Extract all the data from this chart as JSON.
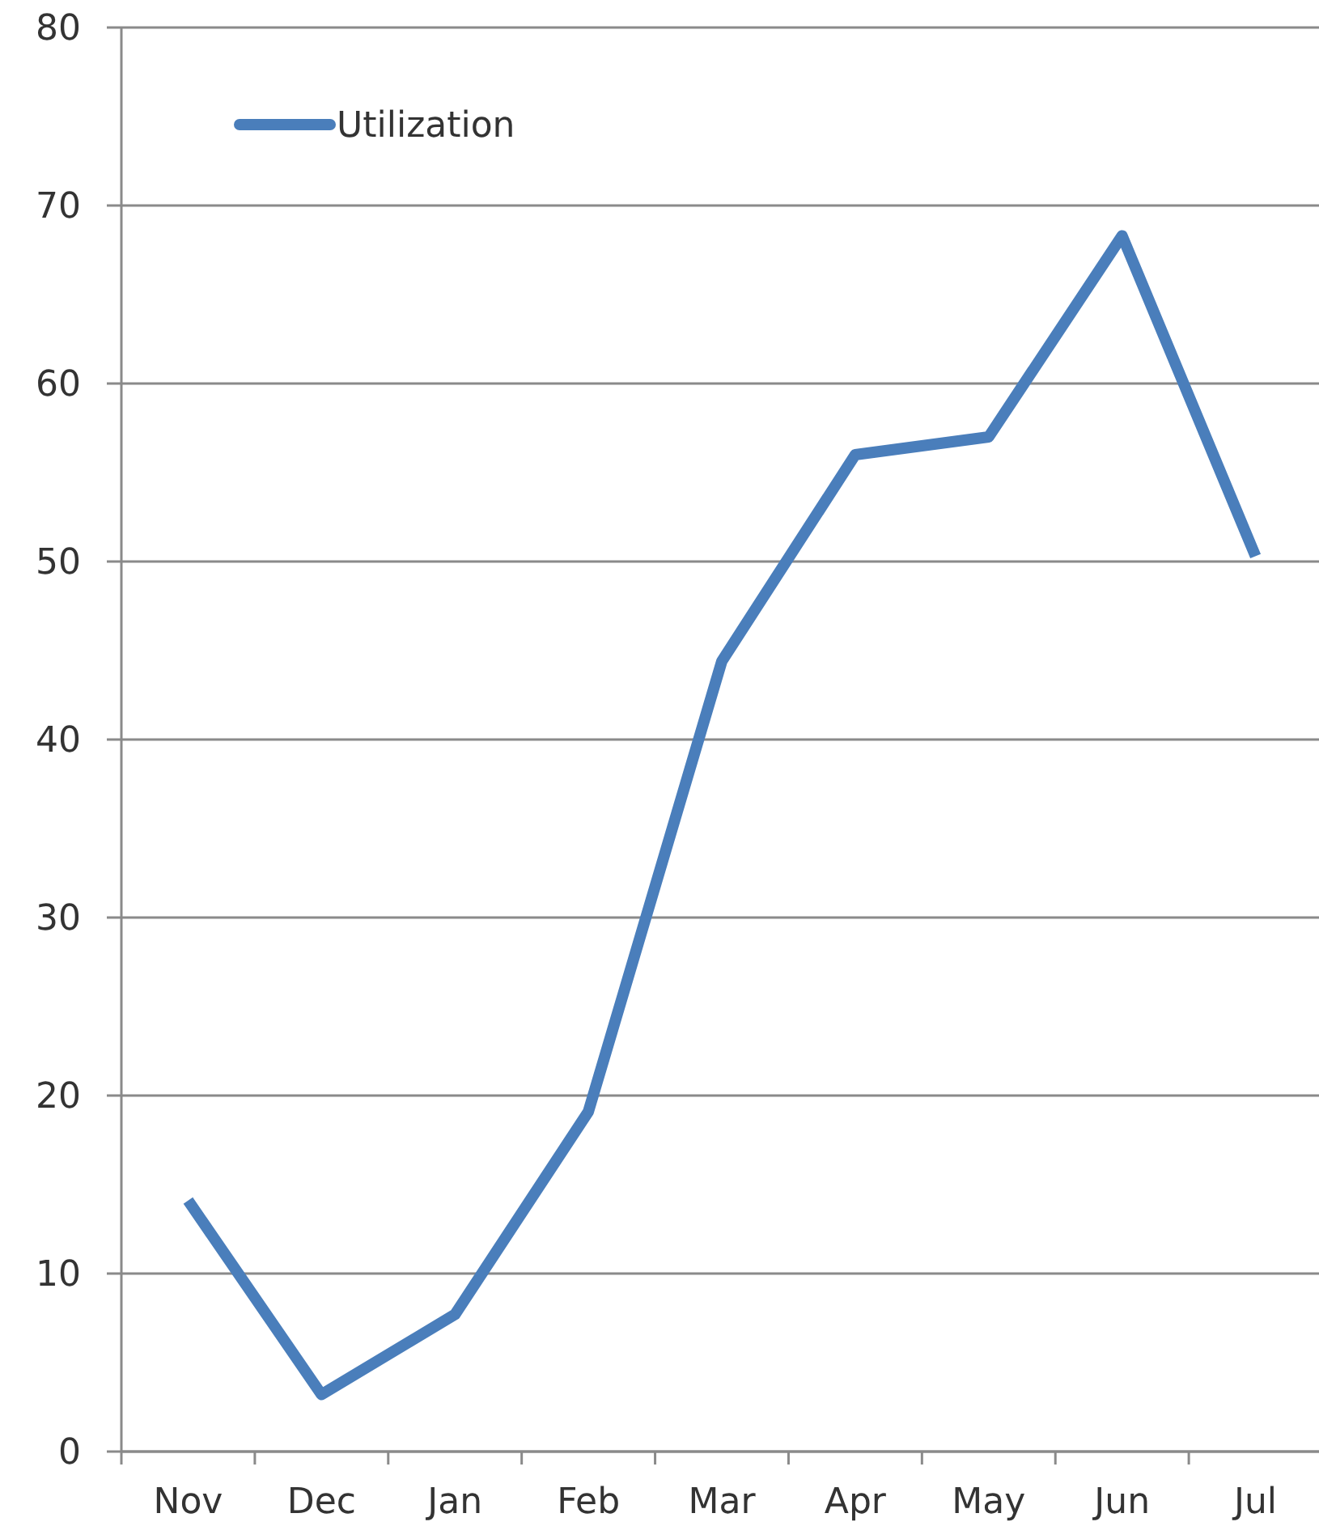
{
  "chart_data": {
    "type": "line",
    "categories": [
      "Nov",
      "Dec",
      "Jan",
      "Feb",
      "Mar",
      "Apr",
      "May",
      "Jun",
      "Jul"
    ],
    "series": [
      {
        "name": "Utilization",
        "color": "#4a7ebb",
        "values": [
          14.1,
          3.2,
          7.7,
          19.1,
          44.4,
          56,
          57,
          68.3,
          50.3
        ]
      }
    ],
    "ylim": [
      0,
      80
    ],
    "yticks": [
      0,
      10,
      20,
      30,
      40,
      50,
      60,
      70,
      80
    ],
    "grid": "y",
    "legend": "top left",
    "marker": "none",
    "line_style": "solid"
  }
}
